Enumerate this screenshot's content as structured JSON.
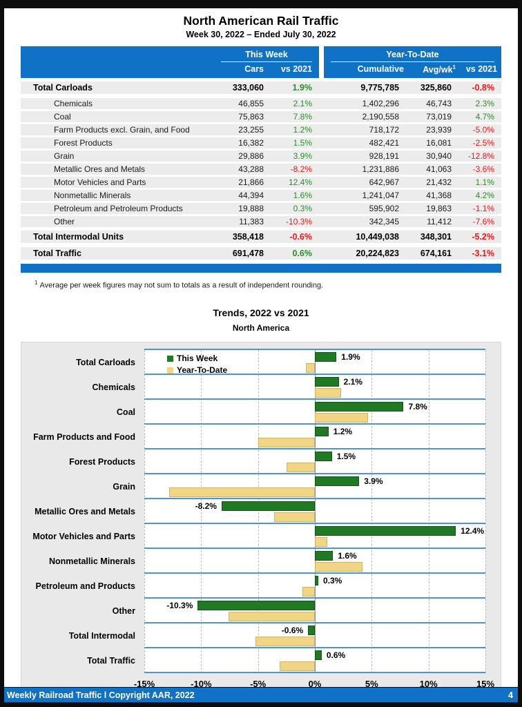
{
  "page": {
    "title": "North American Rail Traffic",
    "subtitle": "Week 30, 2022 – Ended July 30, 2022",
    "footnote": {
      "sup": "1",
      "text": "Average per week figures may not sum to totals as a result of independent rounding."
    },
    "footer": {
      "left": "Weekly Railroad Traffic l Copyright AAR, 2022",
      "page_number": "4"
    }
  },
  "colors": {
    "header_blue": "#0f72c4",
    "band_blue": "#4f94d2",
    "positive_green": "#2e8b2e",
    "negative_red": "#e8191c",
    "bar_green": "#1f7a23",
    "bar_yellow": "#efd584"
  },
  "table": {
    "groups": {
      "this_week": "This Week",
      "ytd": "Year-To-Date"
    },
    "columns": {
      "cars": "Cars",
      "tw_vs": "vs 2021",
      "cumulative": "Cumulative",
      "avg": "Avg/wk",
      "avg_sup": "1",
      "ytd_vs": "vs 2021"
    },
    "rows": [
      {
        "name": "Total Carloads",
        "bold": true,
        "cars": "333,060",
        "tw_vs": "1.9%",
        "cumulative": "9,775,785",
        "avg": "325,860",
        "ytd_vs": "-0.8%"
      },
      {
        "name": "Chemicals",
        "bold": false,
        "cars": "46,855",
        "tw_vs": "2.1%",
        "cumulative": "1,402,296",
        "avg": "46,743",
        "ytd_vs": "2.3%"
      },
      {
        "name": "Coal",
        "bold": false,
        "cars": "75,863",
        "tw_vs": "7.8%",
        "cumulative": "2,190,558",
        "avg": "73,019",
        "ytd_vs": "4.7%"
      },
      {
        "name": "Farm Products excl. Grain, and Food",
        "bold": false,
        "cars": "23,255",
        "tw_vs": "1.2%",
        "cumulative": "718,172",
        "avg": "23,939",
        "ytd_vs": "-5.0%"
      },
      {
        "name": "Forest Products",
        "bold": false,
        "cars": "16,382",
        "tw_vs": "1.5%",
        "cumulative": "482,421",
        "avg": "16,081",
        "ytd_vs": "-2.5%"
      },
      {
        "name": "Grain",
        "bold": false,
        "cars": "29,886",
        "tw_vs": "3.9%",
        "cumulative": "928,191",
        "avg": "30,940",
        "ytd_vs": "-12.8%"
      },
      {
        "name": "Metallic Ores and Metals",
        "bold": false,
        "cars": "43,288",
        "tw_vs": "-8.2%",
        "cumulative": "1,231,886",
        "avg": "41,063",
        "ytd_vs": "-3.6%"
      },
      {
        "name": "Motor Vehicles and Parts",
        "bold": false,
        "cars": "21,866",
        "tw_vs": "12.4%",
        "cumulative": "642,967",
        "avg": "21,432",
        "ytd_vs": "1.1%"
      },
      {
        "name": "Nonmetallic Minerals",
        "bold": false,
        "cars": "44,394",
        "tw_vs": "1.6%",
        "cumulative": "1,241,047",
        "avg": "41,368",
        "ytd_vs": "4.2%"
      },
      {
        "name": "Petroleum and Petroleum Products",
        "bold": false,
        "cars": "19,888",
        "tw_vs": "0.3%",
        "cumulative": "595,902",
        "avg": "19,863",
        "ytd_vs": "-1.1%"
      },
      {
        "name": "Other",
        "bold": false,
        "cars": "11,383",
        "tw_vs": "-10.3%",
        "cumulative": "342,345",
        "avg": "11,412",
        "ytd_vs": "-7.6%"
      },
      {
        "name": "Total Intermodal Units",
        "bold": true,
        "cars": "358,418",
        "tw_vs": "-0.6%",
        "cumulative": "10,449,038",
        "avg": "348,301",
        "ytd_vs": "-5.2%"
      },
      {
        "name": "Total Traffic",
        "bold": true,
        "cars": "691,478",
        "tw_vs": "0.6%",
        "cumulative": "20,224,823",
        "avg": "674,161",
        "ytd_vs": "-3.1%"
      }
    ]
  },
  "chart_data": {
    "type": "bar",
    "orientation": "horizontal",
    "title": "Trends, 2022 vs 2021",
    "subtitle": "North America",
    "categories": [
      "Total Carloads",
      "Chemicals",
      "Coal",
      "Farm Products and Food",
      "Forest Products",
      "Grain",
      "Metallic Ores and Metals",
      "Motor Vehicles and Parts",
      "Nonmetallic Minerals",
      "Petroleum and Products",
      "Other",
      "Total Intermodal",
      "Total Traffic"
    ],
    "series": [
      {
        "name": "This Week",
        "values": [
          1.9,
          2.1,
          7.8,
          1.2,
          1.5,
          3.9,
          -8.2,
          12.4,
          1.6,
          0.3,
          -10.3,
          -0.6,
          0.6
        ]
      },
      {
        "name": "Year-To-Date",
        "values": [
          -0.8,
          2.3,
          4.7,
          -5.0,
          -2.5,
          -12.8,
          -3.6,
          1.1,
          4.2,
          -1.1,
          -7.6,
          -5.2,
          -3.1
        ]
      }
    ],
    "data_labels": [
      "1.9%",
      "2.1%",
      "7.8%",
      "1.2%",
      "1.5%",
      "3.9%",
      "-8.2%",
      "12.4%",
      "1.6%",
      "0.3%",
      "-10.3%",
      "-0.6%",
      "0.6%"
    ],
    "xlabel": "",
    "ylabel": "",
    "xlim": [
      -15,
      15
    ],
    "x_ticks": [
      "-15%",
      "-10%",
      "-5%",
      "0%",
      "5%",
      "10%",
      "15%"
    ],
    "grid": "vertical-dashed",
    "legend_position": "top-left-inside"
  }
}
